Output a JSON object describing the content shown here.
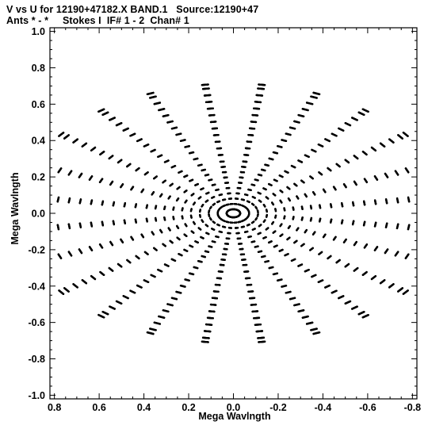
{
  "header": {
    "line1": "V vs U for 12190+47182.X BAND.1   Source:12190+47",
    "line2": "Ants * - *     Stokes I  IF# 1 - 2  Chan# 1"
  },
  "chart_data": {
    "type": "scatter",
    "title": "V vs U for 12190+47182.X BAND.1   Source:12190+47",
    "subtitle": "Ants * - *     Stokes I  IF# 1 - 2  Chan# 1",
    "xlabel": "Mega Wavlngth",
    "ylabel": "Mega Wavlngth",
    "xlim": [
      0.82,
      -0.82
    ],
    "ylim": [
      -1.02,
      1.02
    ],
    "x_ticks": [
      0.8,
      0.6,
      0.4,
      0.2,
      0.0,
      -0.2,
      -0.4,
      -0.6,
      -0.8
    ],
    "x_tick_labels": [
      "0.8",
      "0.6",
      "0.4",
      "0.2",
      "0.0",
      "-0.2",
      "-0.4",
      "-0.6",
      "-0.8"
    ],
    "y_ticks": [
      1.0,
      0.8,
      0.6,
      0.4,
      0.2,
      0.0,
      -0.2,
      -0.4,
      -0.6,
      -0.8,
      -1.0
    ],
    "y_tick_labels": [
      "1.0",
      "0.8",
      "0.6",
      "0.4",
      "0.2",
      "0.0",
      "-0.2",
      "-0.4",
      "-0.6",
      "-0.8",
      "-1.0"
    ],
    "grid": false,
    "marker_color": "#000000",
    "baseline_angles_deg": [
      0,
      60,
      120
    ],
    "baseline_radii": [
      0.03,
      0.07,
      0.11,
      0.15,
      0.19,
      0.23,
      0.27,
      0.31,
      0.35,
      0.39,
      0.44,
      0.49,
      0.54,
      0.59,
      0.64,
      0.69,
      0.74,
      0.79,
      0.84,
      0.89,
      0.94,
      0.97
    ],
    "hour_angle_tracks": [
      -5.5,
      -4.5,
      -3.5,
      -2.5,
      -1.5,
      -0.5,
      0.5,
      1.5,
      2.5,
      3.5,
      4.5,
      5.5
    ],
    "declination_deg": 47.3,
    "symmetric_about_origin": true
  }
}
